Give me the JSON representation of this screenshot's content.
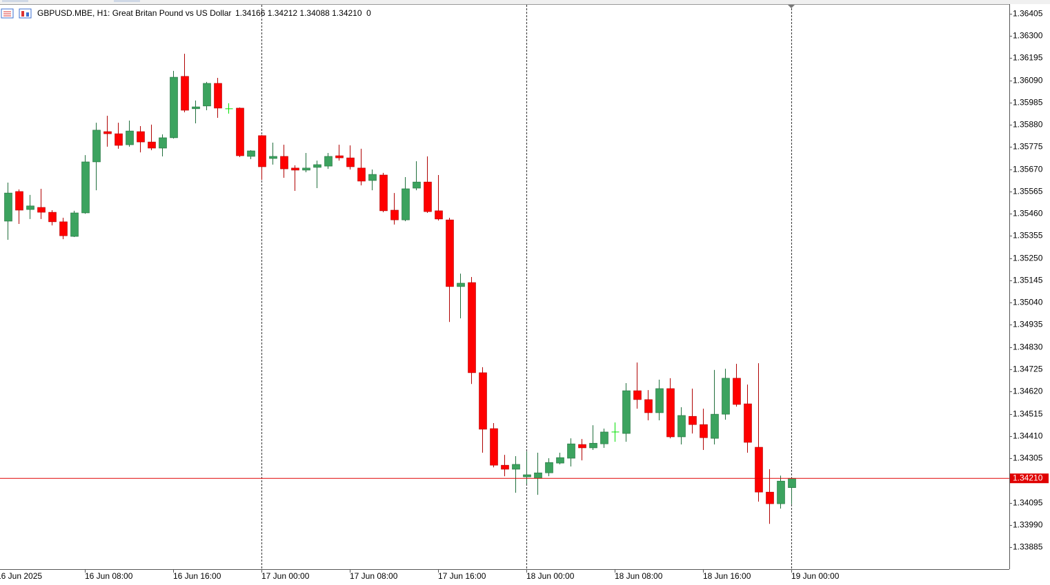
{
  "chart_data": {
    "type": "candlestick",
    "title": "GBPUSD.MBE, H1:  Great Britan Pound vs US Dollar",
    "info": "1.34166 1.34212 1.34088 1.34210  0",
    "categories": [
      "16 Jun 2025",
      null,
      null,
      null,
      null,
      null,
      null,
      null,
      "16 Jun 08:00",
      null,
      null,
      null,
      null,
      null,
      null,
      null,
      "16 Jun 16:00",
      null,
      null,
      null,
      null,
      null,
      null,
      null,
      "17 Jun 00:00",
      null,
      null,
      null,
      null,
      null,
      null,
      null,
      "17 Jun 08:00",
      null,
      null,
      null,
      null,
      null,
      null,
      null,
      "17 Jun 16:00",
      null,
      null,
      null,
      null,
      null,
      null,
      null,
      "18 Jun 00:00",
      null,
      null,
      null,
      null,
      null,
      null,
      null,
      "18 Jun 08:00",
      null,
      null,
      null,
      null,
      null,
      null,
      null,
      "18 Jun 16:00",
      null,
      null,
      null,
      null,
      null,
      null,
      null,
      "19 Jun 00:00"
    ],
    "open": [
      null,
      1.35425,
      1.35565,
      1.3548,
      1.3549,
      1.35467,
      1.35422,
      1.35353,
      1.35464,
      1.35705,
      1.35848,
      1.35838,
      1.35786,
      1.35848,
      1.35799,
      1.3577,
      1.35819,
      1.36109,
      1.35956,
      1.35969,
      1.36076,
      1.35956,
      1.35959,
      1.35731,
      1.35829,
      1.35721,
      1.35731,
      1.35676,
      1.35666,
      1.35679,
      1.35685,
      1.35734,
      1.35724,
      1.35676,
      1.35617,
      1.35643,
      1.35477,
      1.35431,
      1.35581,
      1.3561,
      1.35474,
      1.35431,
      1.35116,
      1.35135,
      1.34709,
      1.34445,
      1.34272,
      1.34253,
      1.34217,
      1.3421,
      1.34236,
      1.34282,
      1.34305,
      1.3437,
      1.34354,
      1.34373,
      1.34429,
      1.34422,
      1.34624,
      1.34582,
      1.3452,
      1.34634,
      1.34406,
      1.34503,
      1.34464,
      1.34399,
      1.34513,
      1.34683,
      1.34562,
      1.34357,
      1.34145,
      1.3409,
      1.34166
    ],
    "high": [
      null,
      1.35607,
      1.35575,
      1.35549,
      1.35578,
      1.35477,
      1.35441,
      1.35474,
      1.35737,
      1.3589,
      1.35923,
      1.3589,
      1.359,
      1.35874,
      1.35881,
      1.35835,
      1.36135,
      1.36216,
      1.35995,
      1.36083,
      1.36102,
      1.35982,
      1.35962,
      1.3576,
      1.35832,
      1.35796,
      1.35786,
      1.35689,
      1.35747,
      1.35711,
      1.35747,
      1.35786,
      1.35783,
      1.35767,
      1.35669,
      1.35653,
      1.35558,
      1.35633,
      1.35708,
      1.35731,
      1.35643,
      1.35441,
      1.35177,
      1.35161,
      1.34735,
      1.34471,
      1.34321,
      1.34315,
      1.34337,
      1.34331,
      1.34305,
      1.34331,
      1.34399,
      1.34396,
      1.34461,
      1.34445,
      1.34474,
      1.3466,
      1.34757,
      1.34627,
      1.34676,
      1.34683,
      1.34546,
      1.34634,
      1.34539,
      1.34722,
      1.34728,
      1.34751,
      1.34653,
      1.34754,
      1.34253,
      1.34223,
      1.34212
    ],
    "low": [
      null,
      1.35337,
      1.35412,
      1.35435,
      1.35435,
      1.35405,
      1.3534,
      1.3535,
      1.3546,
      1.35571,
      1.35777,
      1.35767,
      1.35777,
      1.3575,
      1.3576,
      1.35731,
      1.35815,
      1.35939,
      1.35887,
      1.35949,
      1.35913,
      1.35933,
      1.35728,
      1.35718,
      1.3562,
      1.35692,
      1.3563,
      1.35568,
      1.35656,
      1.35581,
      1.35672,
      1.35711,
      1.35669,
      1.35594,
      1.35571,
      1.35467,
      1.35409,
      1.35425,
      1.35571,
      1.35464,
      1.35428,
      1.34949,
      1.34966,
      1.34656,
      1.34331,
      1.34262,
      1.3422,
      1.34142,
      1.34184,
      1.34132,
      1.3422,
      1.34276,
      1.34266,
      1.34295,
      1.34344,
      1.34354,
      1.34383,
      1.34383,
      1.34539,
      1.34484,
      1.34484,
      1.34399,
      1.3437,
      1.34422,
      1.34344,
      1.3437,
      1.34487,
      1.34549,
      1.34331,
      1.341,
      1.33995,
      1.34067,
      1.34088
    ],
    "close": [
      null,
      1.35558,
      1.35477,
      1.35497,
      1.35467,
      1.35422,
      1.35356,
      1.35464,
      1.35705,
      1.35855,
      1.35838,
      1.35783,
      1.35851,
      1.35799,
      1.3577,
      1.35819,
      1.36105,
      1.35949,
      1.35965,
      1.36076,
      1.35959,
      1.35956,
      1.35734,
      1.35757,
      1.35682,
      1.35731,
      1.35672,
      1.35666,
      1.35676,
      1.35692,
      1.35731,
      1.35724,
      1.35682,
      1.35614,
      1.35646,
      1.35474,
      1.35431,
      1.35578,
      1.3561,
      1.3547,
      1.35435,
      1.35116,
      1.35132,
      1.34709,
      1.34442,
      1.34272,
      1.34253,
      1.34276,
      1.34227,
      1.34236,
      1.34285,
      1.34308,
      1.34373,
      1.34354,
      1.34376,
      1.34429,
      1.34429,
      1.34624,
      1.34582,
      1.3452,
      1.34634,
      1.34406,
      1.34507,
      1.34464,
      1.34402,
      1.34513,
      1.34683,
      1.34559,
      1.3438,
      1.34145,
      1.3409,
      1.34197,
      1.3421
    ],
    "colors": {
      "up": "#3ca35f",
      "down": "#ff0000",
      "doji": "#00e000"
    },
    "bid": {
      "value": 1.3421,
      "label": "1.34210"
    },
    "bid_color": "#e00000",
    "ylim": [
      1.33781,
      1.36447
    ],
    "yticks": [
      1.36405,
      {
        "value": 1.363,
        "label": "1.36300"
      },
      1.36195,
      {
        "value": 1.3609,
        "label": "1.36090"
      },
      1.35985,
      {
        "value": 1.3588,
        "label": "1.35880"
      },
      1.35775,
      {
        "value": 1.3567,
        "label": "1.35670"
      },
      1.35565,
      {
        "value": 1.3546,
        "label": "1.35460"
      },
      1.35355,
      {
        "value": 1.3525,
        "label": "1.35250"
      },
      1.35145,
      {
        "value": 1.3504,
        "label": "1.35040"
      },
      1.34935,
      {
        "value": 1.3483,
        "label": "1.34830"
      },
      1.34725,
      {
        "value": 1.3462,
        "label": "1.34620"
      },
      1.34515,
      {
        "value": 1.3441,
        "label": "1.34410"
      },
      1.34305,
      1.34095,
      {
        "value": 1.3399,
        "label": "1.33990"
      },
      1.33885
    ]
  }
}
